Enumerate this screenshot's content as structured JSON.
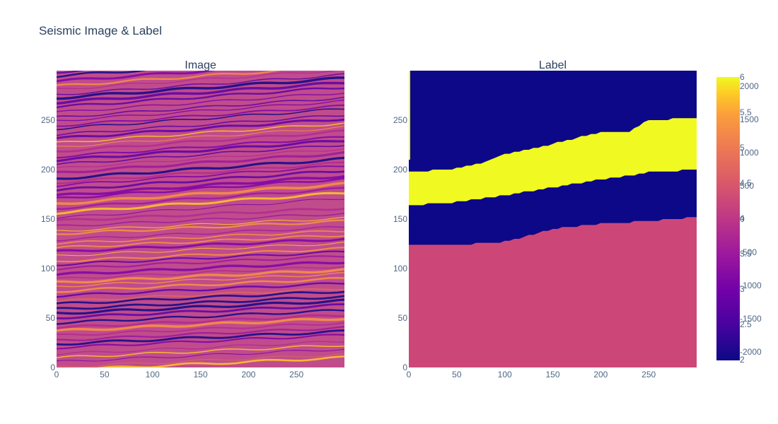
{
  "title": "Seismic Image & Label",
  "chart_data": [
    {
      "type": "heatmap",
      "subtitle": "Image",
      "xlim": [
        0,
        300
      ],
      "ylim": [
        0,
        300
      ],
      "x_ticks": [
        0,
        50,
        100,
        150,
        200,
        250
      ],
      "y_ticks": [
        0,
        50,
        100,
        150,
        200,
        250
      ],
      "colorscale": "plasma",
      "colorbar_ticks": [
        "2000",
        "1500",
        "1000",
        "500",
        "0",
        "-500",
        "-1000",
        "-1500",
        "-2000"
      ]
    },
    {
      "type": "heatmap",
      "subtitle": "Label",
      "xlim": [
        0,
        300
      ],
      "ylim": [
        0,
        300
      ],
      "x_ticks": [
        0,
        50,
        100,
        150,
        200,
        250
      ],
      "y_ticks": [
        0,
        50,
        100,
        150,
        200,
        250
      ],
      "colorscale": "plasma",
      "colorbar_ticks": [
        "6",
        "5.5",
        "5",
        "4.5",
        "4",
        "3.5",
        "3",
        "2.5",
        "2"
      ],
      "layers": [
        {
          "value": 4,
          "color": "#cc4778",
          "top_x": [
            0,
            50,
            100,
            150,
            200,
            250,
            300
          ],
          "top_y": [
            123,
            124,
            127,
            140,
            145,
            148,
            152
          ]
        },
        {
          "value": 2,
          "color": "#0d0887",
          "top_x": [
            0,
            50,
            100,
            150,
            200,
            250,
            300
          ],
          "top_y": [
            164,
            167,
            174,
            182,
            190,
            197,
            200
          ]
        },
        {
          "value": 6,
          "color": "#f0f921",
          "top_x": [
            0,
            50,
            75,
            100,
            150,
            200,
            230,
            250,
            300
          ],
          "top_y": [
            197,
            201,
            206,
            215,
            226,
            238,
            238,
            250,
            252
          ]
        },
        {
          "value": 2,
          "color": "#0d0887",
          "top_x": [
            0,
            300
          ],
          "top_y": [
            300,
            300
          ]
        }
      ]
    }
  ]
}
